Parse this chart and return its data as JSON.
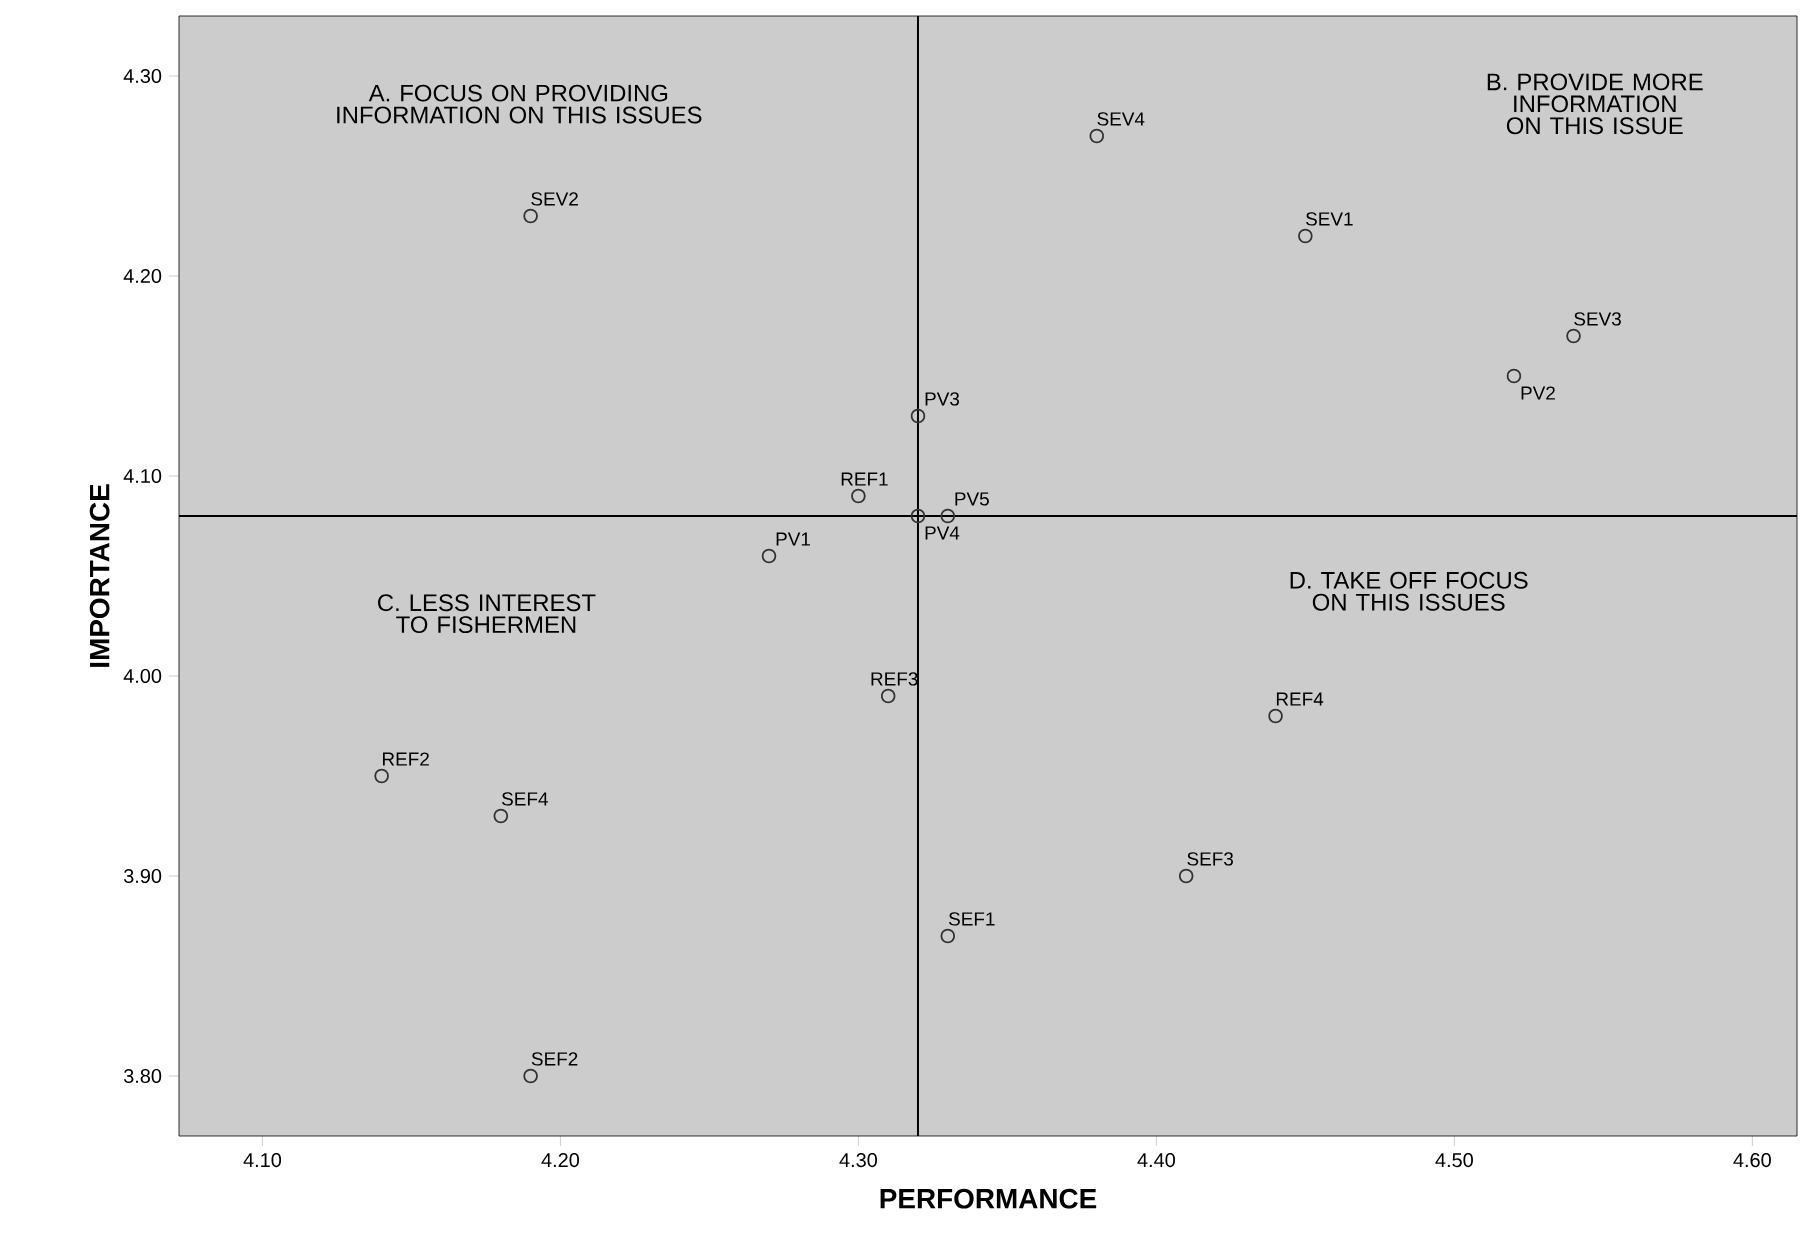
{
  "chart_data": {
    "type": "scatter",
    "xlabel": "PERFORMANCE",
    "ylabel": "IMPORTANCE",
    "xlim": [
      4.072,
      4.615
    ],
    "ylim": [
      3.77,
      4.33
    ],
    "xticks": [
      {
        "value": 4.1,
        "label": "4.10"
      },
      {
        "value": 4.2,
        "label": "4.20"
      },
      {
        "value": 4.3,
        "label": "4.30"
      },
      {
        "value": 4.4,
        "label": "4.40"
      },
      {
        "value": 4.5,
        "label": "4.50"
      },
      {
        "value": 4.6,
        "label": "4.60"
      }
    ],
    "yticks": [
      {
        "value": 3.8,
        "label": "3.80"
      },
      {
        "value": 3.9,
        "label": "3.90"
      },
      {
        "value": 4.0,
        "label": "4.00"
      },
      {
        "value": 4.1,
        "label": "4.10"
      },
      {
        "value": 4.2,
        "label": "4.20"
      },
      {
        "value": 4.3,
        "label": "4.30"
      }
    ],
    "marker": "circle",
    "grid": false,
    "series": [
      {
        "color": "#333333",
        "x": [
          4.19,
          4.38,
          4.45,
          4.54,
          4.52,
          4.32,
          4.3,
          4.33,
          4.32,
          4.27,
          4.31,
          4.44,
          4.14,
          4.18,
          4.41,
          4.33,
          4.19
        ],
        "values": [
          4.23,
          4.27,
          4.22,
          4.17,
          4.15,
          4.13,
          4.09,
          4.08,
          4.08,
          4.06,
          3.99,
          3.98,
          3.95,
          3.93,
          3.9,
          3.87,
          3.8
        ]
      }
    ],
    "ref_lines": [
      {
        "axis": "x",
        "value": 4.32,
        "color": "#000000"
      },
      {
        "axis": "y",
        "value": 4.08,
        "color": "#000000"
      }
    ],
    "annotations": [
      "A. FOCUS ON PROVIDING INFORMATION ON THIS ISSUES",
      "B. PROVIDE MORE INFORMATION ON THIS ISSUE",
      "C. LESS INTEREST TO FISHERMEN",
      "D. TAKE OFF FOCUS ON THIS ISSUES",
      {
        "text": "SEV2",
        "x": 4.19,
        "y": 4.23
      },
      {
        "text": "SEV4",
        "x": 4.38,
        "y": 4.27
      },
      {
        "text": "SEV1",
        "x": 4.45,
        "y": 4.22
      },
      {
        "text": "SEV3",
        "x": 4.54,
        "y": 4.17
      },
      {
        "text": "PV2",
        "x": 4.52,
        "y": 4.15
      },
      {
        "text": "PV3",
        "x": 4.32,
        "y": 4.13
      },
      {
        "text": "REF1",
        "x": 4.3,
        "y": 4.09
      },
      {
        "text": "PV5",
        "x": 4.33,
        "y": 4.08
      },
      {
        "text": "PV4",
        "x": 4.32,
        "y": 4.08
      },
      {
        "text": "PV1",
        "x": 4.27,
        "y": 4.06
      },
      {
        "text": "REF3",
        "x": 4.31,
        "y": 3.99
      },
      {
        "text": "REF4",
        "x": 4.44,
        "y": 3.98
      },
      {
        "text": "REF2",
        "x": 4.14,
        "y": 3.95
      },
      {
        "text": "SEF4",
        "x": 4.18,
        "y": 3.93
      },
      {
        "text": "SEF3",
        "x": 4.41,
        "y": 3.9
      },
      {
        "text": "SEF1",
        "x": 4.33,
        "y": 3.87
      },
      {
        "text": "SEF2",
        "x": 4.19,
        "y": 3.8
      }
    ]
  }
}
